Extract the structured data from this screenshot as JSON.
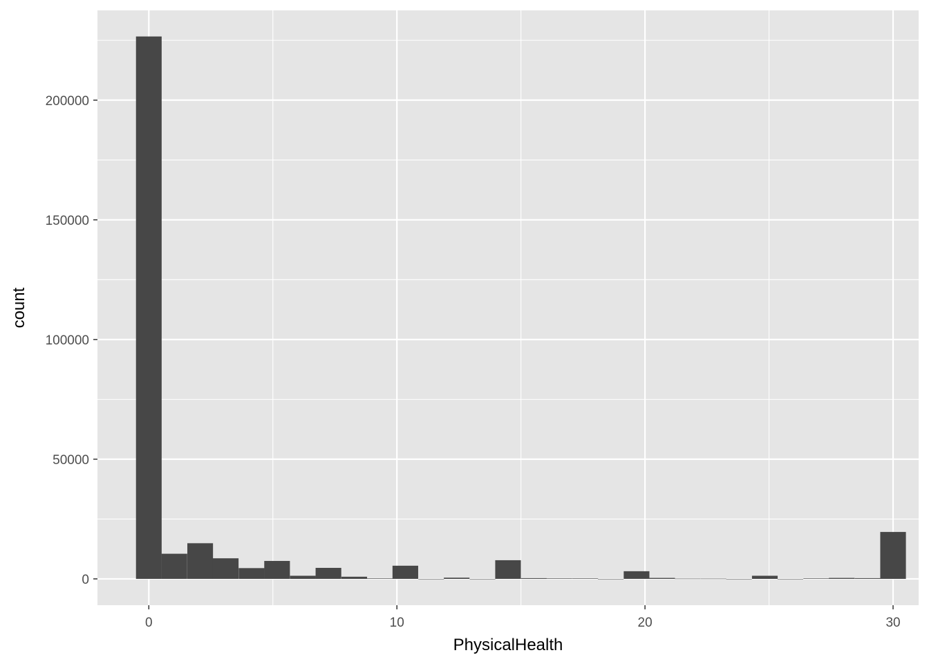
{
  "chart_data": {
    "type": "bar",
    "title": "",
    "xlabel": "PhysicalHealth",
    "ylabel": "count",
    "bin_width": 1.0345,
    "xlim": [
      -2.07,
      31.03
    ],
    "ylim": [
      -11000,
      237500
    ],
    "x_ticks": [
      0,
      10,
      20,
      30
    ],
    "y_ticks": [
      0,
      50000,
      100000,
      150000,
      200000
    ],
    "x_tick_labels": [
      "0",
      "10",
      "20",
      "30"
    ],
    "y_tick_labels": [
      "0",
      "50000",
      "100000",
      "150000",
      "200000"
    ],
    "bins": [
      {
        "center": 0.0,
        "count": 226600
      },
      {
        "center": 1.03,
        "count": 10500
      },
      {
        "center": 2.07,
        "count": 14900
      },
      {
        "center": 3.1,
        "count": 8600
      },
      {
        "center": 4.14,
        "count": 4500
      },
      {
        "center": 5.17,
        "count": 7500
      },
      {
        "center": 6.21,
        "count": 1300
      },
      {
        "center": 7.24,
        "count": 4600
      },
      {
        "center": 8.28,
        "count": 900
      },
      {
        "center": 9.31,
        "count": 200
      },
      {
        "center": 10.34,
        "count": 5500
      },
      {
        "center": 11.38,
        "count": 0
      },
      {
        "center": 12.41,
        "count": 500
      },
      {
        "center": 13.45,
        "count": 0
      },
      {
        "center": 14.48,
        "count": 7800
      },
      {
        "center": 15.52,
        "count": 300
      },
      {
        "center": 16.55,
        "count": 200
      },
      {
        "center": 17.59,
        "count": 200
      },
      {
        "center": 18.62,
        "count": 0
      },
      {
        "center": 19.66,
        "count": 3200
      },
      {
        "center": 20.69,
        "count": 400
      },
      {
        "center": 21.72,
        "count": 100
      },
      {
        "center": 22.76,
        "count": 100
      },
      {
        "center": 23.79,
        "count": 0
      },
      {
        "center": 24.83,
        "count": 1300
      },
      {
        "center": 25.86,
        "count": 0
      },
      {
        "center": 26.9,
        "count": 200
      },
      {
        "center": 27.93,
        "count": 400
      },
      {
        "center": 28.97,
        "count": 300
      },
      {
        "center": 30.0,
        "count": 19600
      }
    ],
    "grid": true,
    "colors": {
      "panel_background": "#e5e5e5",
      "grid_major": "#ffffff",
      "bar_fill": "#474747",
      "tick_mark": "#333333"
    }
  }
}
